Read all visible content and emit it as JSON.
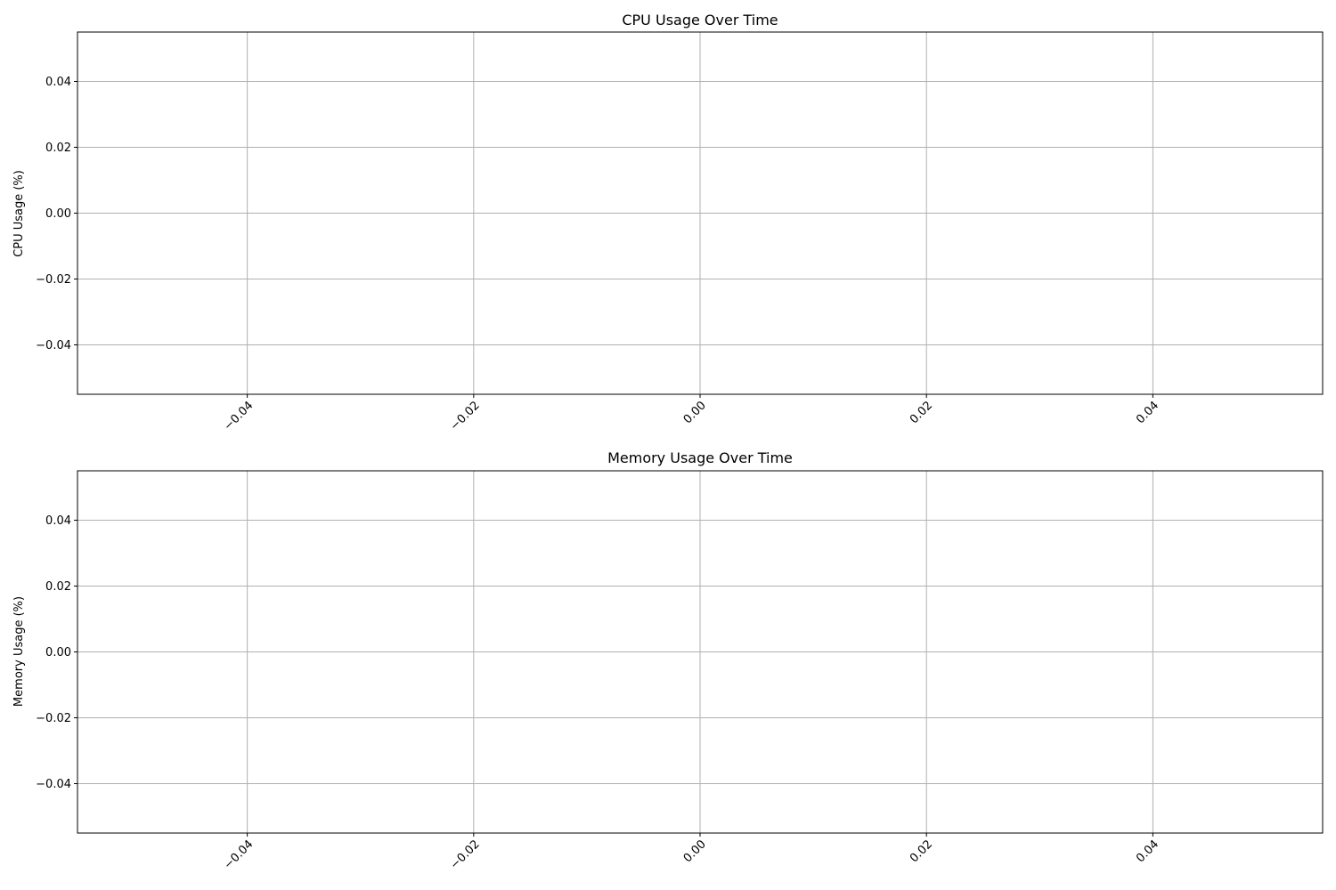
{
  "chart_data": [
    {
      "type": "line",
      "title": "CPU Usage Over Time",
      "xlabel": "",
      "ylabel": "CPU Usage (%)",
      "xlim": [
        -0.055,
        0.055
      ],
      "ylim": [
        -0.055,
        0.055
      ],
      "xticks": [
        -0.04,
        -0.02,
        0.0,
        0.02,
        0.04
      ],
      "xtick_labels": [
        "−0.04",
        "−0.02",
        "0.00",
        "0.02",
        "0.04"
      ],
      "xtick_rotation": 45,
      "yticks": [
        -0.04,
        -0.02,
        0.0,
        0.02,
        0.04
      ],
      "ytick_labels": [
        "−0.04",
        "−0.02",
        "0.00",
        "0.02",
        "0.04"
      ],
      "grid": true,
      "series": [
        {
          "values": []
        }
      ]
    },
    {
      "type": "line",
      "title": "Memory Usage Over Time",
      "xlabel": "",
      "ylabel": "Memory Usage (%)",
      "xlim": [
        -0.055,
        0.055
      ],
      "ylim": [
        -0.055,
        0.055
      ],
      "xticks": [
        -0.04,
        -0.02,
        0.0,
        0.02,
        0.04
      ],
      "xtick_labels": [
        "−0.04",
        "−0.02",
        "0.00",
        "0.02",
        "0.04"
      ],
      "xtick_rotation": 45,
      "yticks": [
        -0.04,
        -0.02,
        0.0,
        0.02,
        0.04
      ],
      "ytick_labels": [
        "−0.04",
        "−0.02",
        "0.00",
        "0.02",
        "0.04"
      ],
      "grid": true,
      "series": [
        {
          "values": []
        }
      ]
    }
  ]
}
